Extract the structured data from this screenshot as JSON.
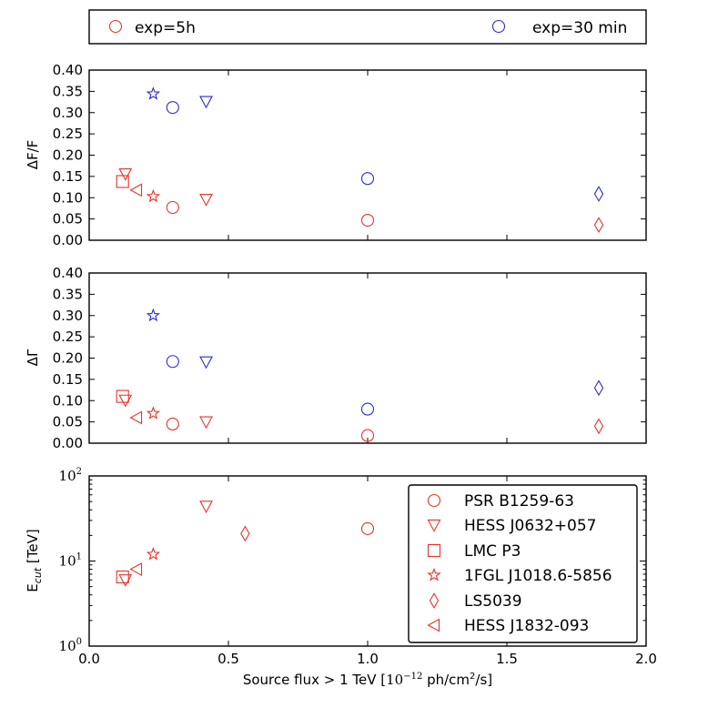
{
  "top_legend": {
    "entries": [
      {
        "label": "exp=5h",
        "color": "#e8322c",
        "marker": "circle"
      },
      {
        "label": "exp=30 min",
        "color": "#2a2ad6",
        "marker": "circle"
      }
    ]
  },
  "x_axis": {
    "label_main": "Source flux > 1 TeV [",
    "label_exp_base": "10",
    "label_exp": "−12",
    "label_unit_a": " ph/cm",
    "label_unit_sup": "2",
    "label_unit_b": "/s]",
    "range": [
      0.0,
      2.0
    ],
    "ticks": [
      0.0,
      0.5,
      1.0,
      1.5,
      2.0
    ],
    "tick_labels": [
      "0.0",
      "0.5",
      "1.0",
      "1.5",
      "2.0"
    ]
  },
  "sources": [
    {
      "name": "PSR B1259-63",
      "marker": "circle"
    },
    {
      "name": "HESS J0632+057",
      "marker": "triangle-down"
    },
    {
      "name": "LMC P3",
      "marker": "square"
    },
    {
      "name": "1FGL J1018.6-5856",
      "marker": "star"
    },
    {
      "name": "LS5039",
      "marker": "diamond"
    },
    {
      "name": "HESS J1832-093",
      "marker": "triangle-left"
    }
  ],
  "chart_data": [
    {
      "type": "scatter",
      "panel": "flux",
      "ylabel": "ΔF/F",
      "ylim": [
        0.0,
        0.4
      ],
      "yticks": [
        "0.00",
        "0.05",
        "0.10",
        "0.15",
        "0.20",
        "0.25",
        "0.30",
        "0.35",
        "0.40"
      ],
      "series": [
        {
          "name": "exp=5h",
          "color": "#e8322c",
          "points": [
            {
              "x": 0.3,
              "y": 0.077,
              "marker": "circle"
            },
            {
              "x": 1.0,
              "y": 0.047,
              "marker": "circle"
            },
            {
              "x": 0.13,
              "y": 0.156,
              "marker": "triangle-down"
            },
            {
              "x": 0.42,
              "y": 0.096,
              "marker": "triangle-down"
            },
            {
              "x": 0.12,
              "y": 0.138,
              "marker": "square"
            },
            {
              "x": 0.23,
              "y": 0.103,
              "marker": "star"
            },
            {
              "x": 1.83,
              "y": 0.036,
              "marker": "diamond"
            },
            {
              "x": 0.17,
              "y": 0.118,
              "marker": "triangle-left"
            }
          ]
        },
        {
          "name": "exp=30 min",
          "color": "#2a2ad6",
          "points": [
            {
              "x": 0.3,
              "y": 0.312,
              "marker": "circle"
            },
            {
              "x": 1.0,
              "y": 0.145,
              "marker": "circle"
            },
            {
              "x": 0.42,
              "y": 0.326,
              "marker": "triangle-down"
            },
            {
              "x": 0.23,
              "y": 0.344,
              "marker": "star"
            },
            {
              "x": 1.83,
              "y": 0.109,
              "marker": "diamond"
            }
          ]
        }
      ]
    },
    {
      "type": "scatter",
      "panel": "index",
      "ylabel": "ΔΓ",
      "ylim": [
        0.0,
        0.4
      ],
      "yticks": [
        "0.00",
        "0.05",
        "0.10",
        "0.15",
        "0.20",
        "0.25",
        "0.30",
        "0.35",
        "0.40"
      ],
      "series": [
        {
          "name": "exp=5h",
          "color": "#e8322c",
          "points": [
            {
              "x": 0.3,
              "y": 0.045,
              "marker": "circle"
            },
            {
              "x": 1.0,
              "y": 0.018,
              "marker": "circle"
            },
            {
              "x": 0.13,
              "y": 0.101,
              "marker": "triangle-down"
            },
            {
              "x": 0.42,
              "y": 0.05,
              "marker": "triangle-down"
            },
            {
              "x": 0.12,
              "y": 0.11,
              "marker": "square"
            },
            {
              "x": 0.23,
              "y": 0.07,
              "marker": "star"
            },
            {
              "x": 1.83,
              "y": 0.04,
              "marker": "diamond"
            },
            {
              "x": 0.17,
              "y": 0.06,
              "marker": "triangle-left"
            }
          ]
        },
        {
          "name": "exp=30 min",
          "color": "#2a2ad6",
          "points": [
            {
              "x": 0.3,
              "y": 0.192,
              "marker": "circle"
            },
            {
              "x": 1.0,
              "y": 0.08,
              "marker": "circle"
            },
            {
              "x": 0.42,
              "y": 0.191,
              "marker": "triangle-down"
            },
            {
              "x": 0.23,
              "y": 0.3,
              "marker": "star"
            },
            {
              "x": 1.83,
              "y": 0.13,
              "marker": "diamond"
            }
          ]
        }
      ]
    },
    {
      "type": "scatter",
      "panel": "cutoff",
      "ylabel_main": "E",
      "ylabel_sub": "cut",
      "ylabel_unit": " [TeV]",
      "yscale": "log",
      "ylim": [
        1,
        100
      ],
      "yticks": [
        1,
        10,
        100
      ],
      "ytick_base": "10",
      "ytick_exps": [
        "0",
        "1",
        "2"
      ],
      "legend_position": "center-right",
      "series": [
        {
          "name": "exp=5h",
          "color": "#e8322c",
          "points": [
            {
              "x": 1.0,
              "y": 24,
              "marker": "circle"
            },
            {
              "x": 0.13,
              "y": 6.0,
              "marker": "triangle-down"
            },
            {
              "x": 0.42,
              "y": 44,
              "marker": "triangle-down"
            },
            {
              "x": 0.12,
              "y": 6.5,
              "marker": "square"
            },
            {
              "x": 0.23,
              "y": 12,
              "marker": "star"
            },
            {
              "x": 0.56,
              "y": 21,
              "marker": "diamond"
            },
            {
              "x": 0.17,
              "y": 8.0,
              "marker": "triangle-left"
            }
          ]
        }
      ]
    }
  ]
}
